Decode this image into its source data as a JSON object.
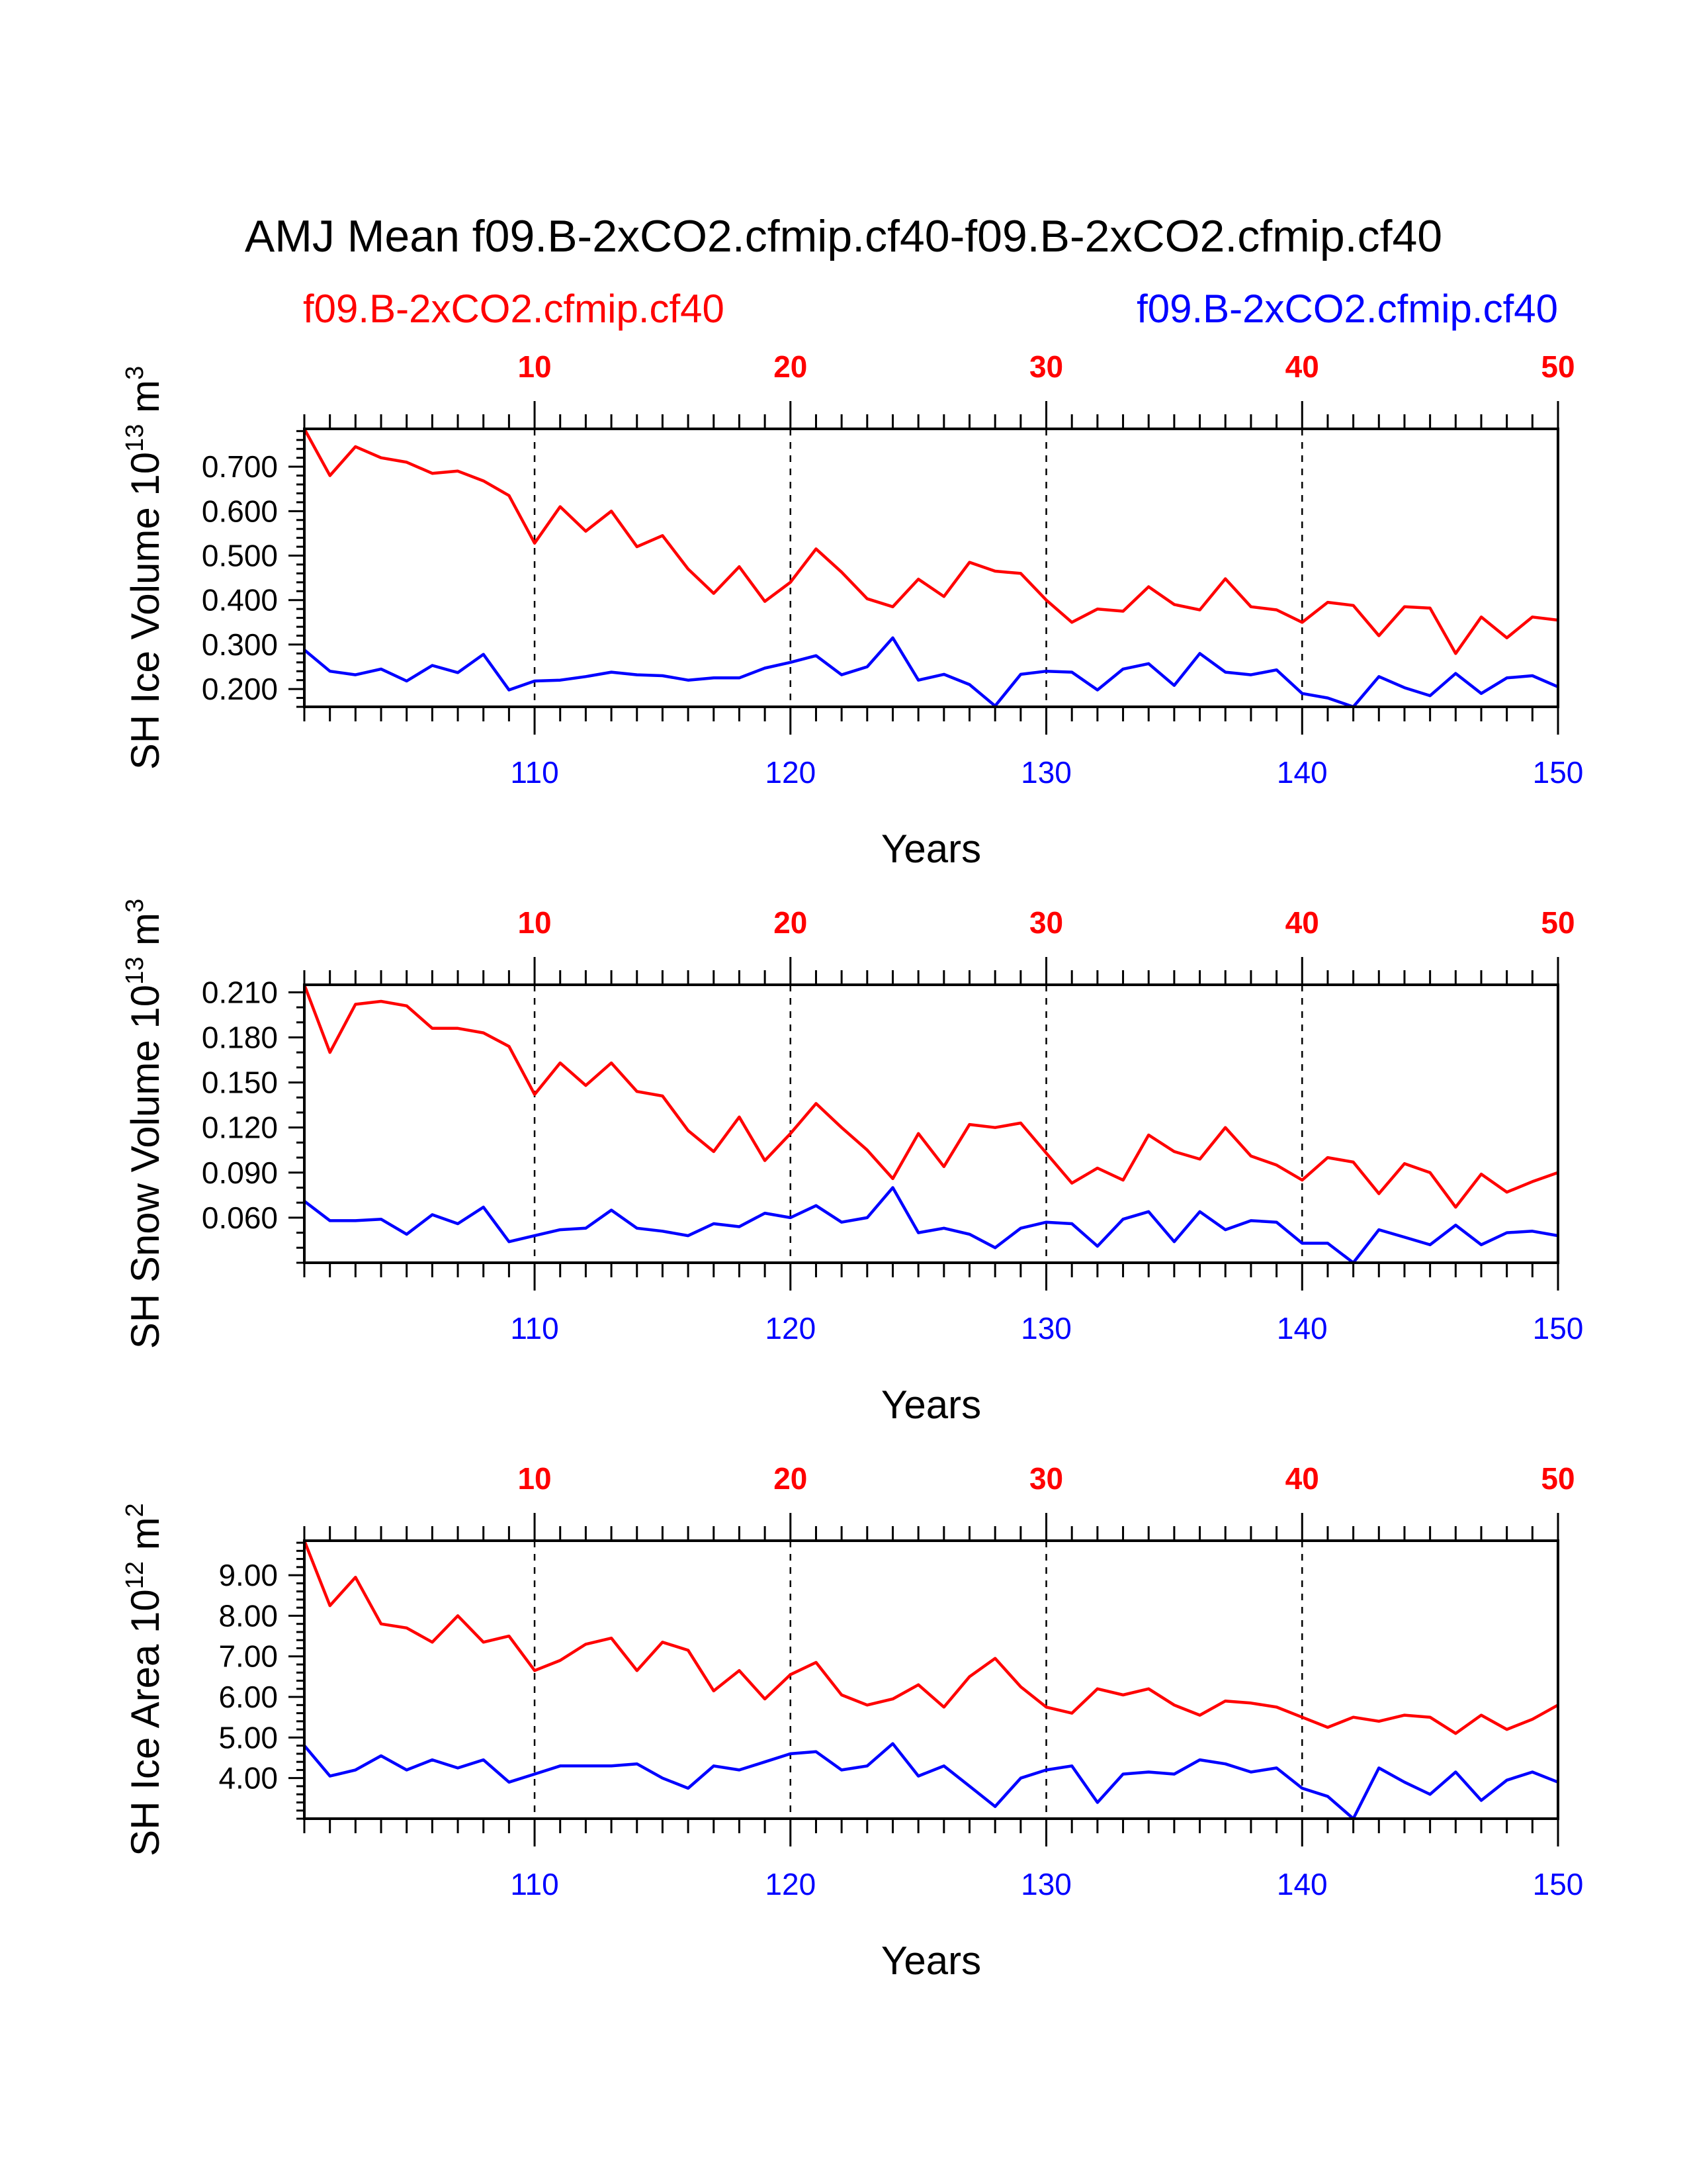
{
  "title": "AMJ Mean f09.B-2xCO2.cfmip.cf40-f09.B-2xCO2.cfmip.cf40",
  "legend": {
    "left": {
      "label": "f09.B-2xCO2.cfmip.cf40",
      "color": "#ff0000"
    },
    "right": {
      "label": "f09.B-2xCO2.cfmip.cf40",
      "color": "#0000ff"
    }
  },
  "colors": {
    "red": "#ff0000",
    "blue": "#0000ff",
    "axis": "#000000"
  },
  "chart_data": [
    {
      "type": "line",
      "name": "ice-volume",
      "xlabel": "Years",
      "ylabel": "SH Ice Volume 10",
      "ylabel_exp": "13",
      "ylabel_unit": "m",
      "ylabel_unit_exp": "3",
      "xlim": [
        101,
        150
      ],
      "ylim": [
        0.16,
        0.785
      ],
      "yticks": [
        "0.700",
        "0.600",
        "0.500",
        "0.400",
        "0.300",
        "0.200"
      ],
      "ytick_values": [
        0.7,
        0.6,
        0.5,
        0.4,
        0.3,
        0.2
      ],
      "yminor_step": 0.02,
      "xticks_bottom": [
        "110",
        "120",
        "130",
        "140",
        "150"
      ],
      "xticks_top": [
        "10",
        "20",
        "30",
        "40",
        "50"
      ],
      "xtick_values": [
        110,
        120,
        130,
        140,
        150
      ],
      "grid": "dashed vertical at major x ticks",
      "x": [
        101,
        102,
        103,
        104,
        105,
        106,
        107,
        108,
        109,
        110,
        111,
        112,
        113,
        114,
        115,
        116,
        117,
        118,
        119,
        120,
        121,
        122,
        123,
        124,
        125,
        126,
        127,
        128,
        129,
        130,
        131,
        132,
        133,
        134,
        135,
        136,
        137,
        138,
        139,
        140,
        141,
        142,
        143,
        144,
        145,
        146,
        147,
        148,
        149,
        150
      ],
      "series": [
        {
          "color": "#ff0000",
          "values": [
            0.785,
            0.68,
            0.745,
            0.72,
            0.71,
            0.685,
            0.69,
            0.668,
            0.635,
            0.528,
            0.61,
            0.555,
            0.6,
            0.52,
            0.545,
            0.47,
            0.415,
            0.475,
            0.397,
            0.44,
            0.515,
            0.463,
            0.403,
            0.385,
            0.447,
            0.408,
            0.485,
            0.465,
            0.46,
            0.4,
            0.35,
            0.38,
            0.375,
            0.43,
            0.39,
            0.378,
            0.448,
            0.385,
            0.378,
            0.35,
            0.395,
            0.388,
            0.32,
            0.385,
            0.382,
            0.28,
            0.362,
            0.315,
            0.362,
            0.355
          ]
        },
        {
          "color": "#0000ff",
          "values": [
            0.288,
            0.24,
            0.232,
            0.245,
            0.218,
            0.253,
            0.237,
            0.278,
            0.198,
            0.218,
            0.22,
            0.228,
            0.238,
            0.232,
            0.23,
            0.22,
            0.225,
            0.225,
            0.247,
            0.26,
            0.275,
            0.232,
            0.25,
            0.315,
            0.22,
            0.233,
            0.21,
            0.162,
            0.233,
            0.24,
            0.238,
            0.198,
            0.245,
            0.257,
            0.208,
            0.28,
            0.238,
            0.232,
            0.243,
            0.19,
            0.18,
            0.16,
            0.228,
            0.203,
            0.185,
            0.235,
            0.19,
            0.225,
            0.23,
            0.205
          ]
        }
      ]
    },
    {
      "type": "line",
      "name": "snow-volume",
      "xlabel": "Years",
      "ylabel": "SH Snow Volume 10",
      "ylabel_exp": "13",
      "ylabel_unit": "m",
      "ylabel_unit_exp": "3",
      "xlim": [
        101,
        150
      ],
      "ylim": [
        0.03,
        0.215
      ],
      "yticks": [
        "0.210",
        "0.180",
        "0.150",
        "0.120",
        "0.090",
        "0.060"
      ],
      "ytick_values": [
        0.21,
        0.18,
        0.15,
        0.12,
        0.09,
        0.06
      ],
      "yminor_step": 0.01,
      "xticks_bottom": [
        "110",
        "120",
        "130",
        "140",
        "150"
      ],
      "xticks_top": [
        "10",
        "20",
        "30",
        "40",
        "50"
      ],
      "xtick_values": [
        110,
        120,
        130,
        140,
        150
      ],
      "grid": "dashed vertical at major x ticks",
      "x": [
        101,
        102,
        103,
        104,
        105,
        106,
        107,
        108,
        109,
        110,
        111,
        112,
        113,
        114,
        115,
        116,
        117,
        118,
        119,
        120,
        121,
        122,
        123,
        124,
        125,
        126,
        127,
        128,
        129,
        130,
        131,
        132,
        133,
        134,
        135,
        136,
        137,
        138,
        139,
        140,
        141,
        142,
        143,
        144,
        145,
        146,
        147,
        148,
        149,
        150
      ],
      "series": [
        {
          "color": "#ff0000",
          "values": [
            0.215,
            0.17,
            0.202,
            0.204,
            0.201,
            0.186,
            0.186,
            0.183,
            0.174,
            0.142,
            0.163,
            0.148,
            0.163,
            0.144,
            0.141,
            0.118,
            0.104,
            0.127,
            0.098,
            0.116,
            0.136,
            0.12,
            0.105,
            0.086,
            0.116,
            0.094,
            0.122,
            0.12,
            0.123,
            0.103,
            0.083,
            0.093,
            0.085,
            0.115,
            0.104,
            0.099,
            0.12,
            0.101,
            0.095,
            0.085,
            0.1,
            0.097,
            0.076,
            0.096,
            0.09,
            0.067,
            0.089,
            0.077,
            0.084,
            0.09
          ]
        },
        {
          "color": "#0000ff",
          "values": [
            0.071,
            0.058,
            0.058,
            0.059,
            0.049,
            0.062,
            0.056,
            0.067,
            0.044,
            0.048,
            0.052,
            0.053,
            0.065,
            0.053,
            0.051,
            0.048,
            0.056,
            0.054,
            0.063,
            0.06,
            0.068,
            0.057,
            0.06,
            0.08,
            0.05,
            0.053,
            0.049,
            0.04,
            0.053,
            0.057,
            0.056,
            0.041,
            0.059,
            0.064,
            0.044,
            0.064,
            0.052,
            0.058,
            0.057,
            0.043,
            0.043,
            0.03,
            0.052,
            0.047,
            0.042,
            0.055,
            0.042,
            0.05,
            0.051,
            0.048
          ]
        }
      ]
    },
    {
      "type": "line",
      "name": "ice-area",
      "xlabel": "Years",
      "ylabel": "SH Ice Area 10",
      "ylabel_exp": "12",
      "ylabel_unit": "m",
      "ylabel_unit_exp": "2",
      "xlim": [
        101,
        150
      ],
      "ylim": [
        3.0,
        9.85
      ],
      "yticks": [
        "9.00",
        "8.00",
        "7.00",
        "6.00",
        "5.00",
        "4.00"
      ],
      "ytick_values": [
        9,
        8,
        7,
        6,
        5,
        4
      ],
      "yminor_step": 0.2,
      "xticks_bottom": [
        "110",
        "120",
        "130",
        "140",
        "150"
      ],
      "xticks_top": [
        "10",
        "20",
        "30",
        "40",
        "50"
      ],
      "xtick_values": [
        110,
        120,
        130,
        140,
        150
      ],
      "grid": "dashed vertical at major x ticks",
      "x": [
        101,
        102,
        103,
        104,
        105,
        106,
        107,
        108,
        109,
        110,
        111,
        112,
        113,
        114,
        115,
        116,
        117,
        118,
        119,
        120,
        121,
        122,
        123,
        124,
        125,
        126,
        127,
        128,
        129,
        130,
        131,
        132,
        133,
        134,
        135,
        136,
        137,
        138,
        139,
        140,
        141,
        142,
        143,
        144,
        145,
        146,
        147,
        148,
        149,
        150
      ],
      "series": [
        {
          "color": "#ff0000",
          "values": [
            9.85,
            8.25,
            8.95,
            7.8,
            7.7,
            7.35,
            8.0,
            7.35,
            7.5,
            6.65,
            6.9,
            7.3,
            7.45,
            6.65,
            7.35,
            7.15,
            6.15,
            6.65,
            5.95,
            6.55,
            6.85,
            6.05,
            5.8,
            5.95,
            6.3,
            5.75,
            6.5,
            6.95,
            6.25,
            5.75,
            5.6,
            6.2,
            6.05,
            6.2,
            5.8,
            5.55,
            5.9,
            5.85,
            5.75,
            5.5,
            5.25,
            5.5,
            5.4,
            5.55,
            5.5,
            5.1,
            5.55,
            5.2,
            5.45,
            5.8
          ]
        },
        {
          "color": "#0000ff",
          "values": [
            4.8,
            4.05,
            4.2,
            4.55,
            4.2,
            4.45,
            4.25,
            4.45,
            3.9,
            4.1,
            4.3,
            4.3,
            4.3,
            4.35,
            4.0,
            3.75,
            4.3,
            4.2,
            4.4,
            4.6,
            4.65,
            4.2,
            4.3,
            4.85,
            4.05,
            4.3,
            3.8,
            3.3,
            4.0,
            4.2,
            4.3,
            3.4,
            4.1,
            4.15,
            4.1,
            4.45,
            4.35,
            4.15,
            4.25,
            3.75,
            3.55,
            3.0,
            4.25,
            3.9,
            3.6,
            4.15,
            3.45,
            3.95,
            4.15,
            3.9
          ]
        }
      ]
    }
  ]
}
